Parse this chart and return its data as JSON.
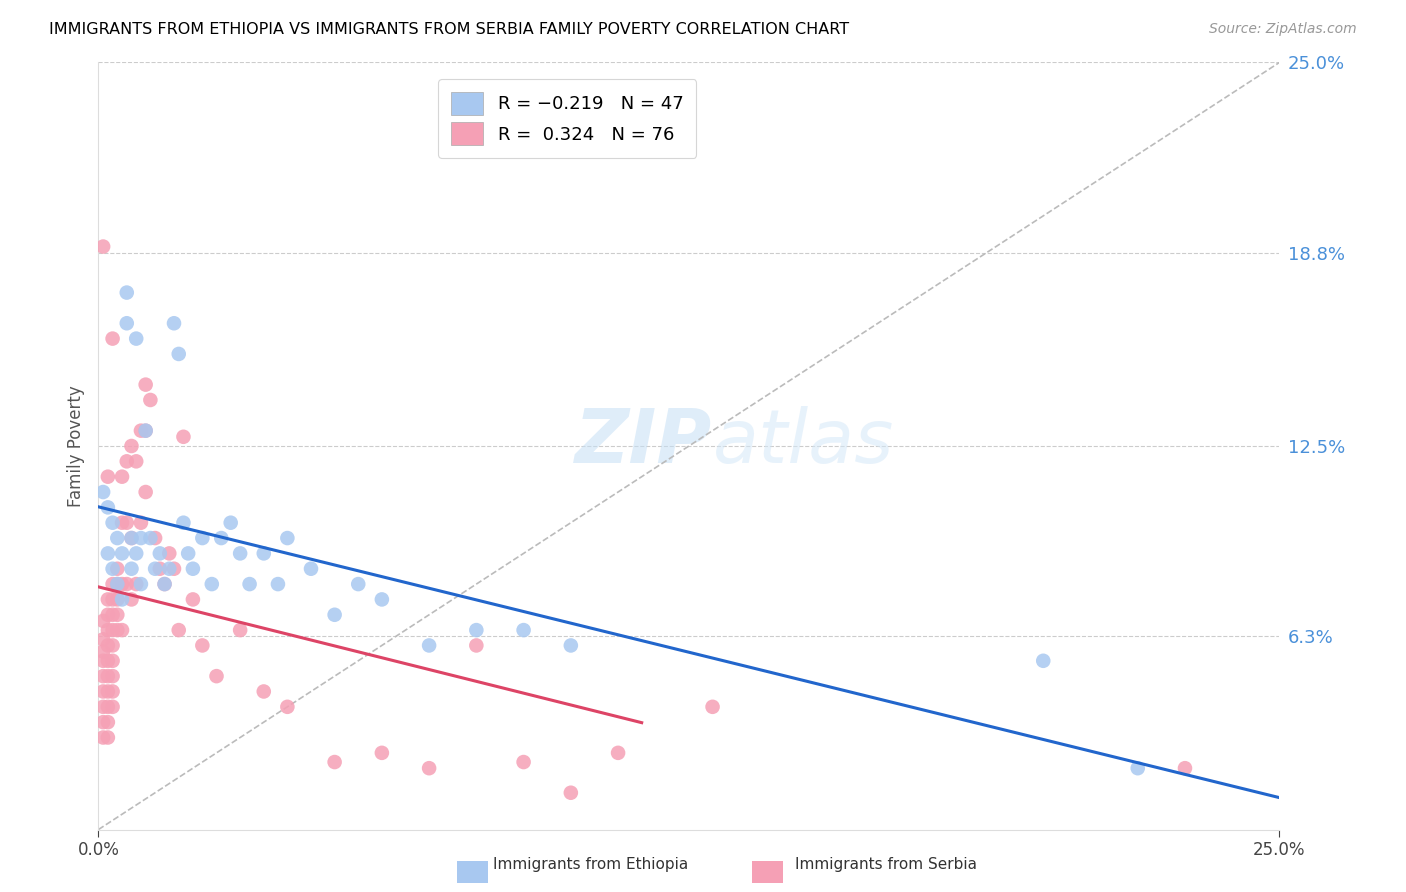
{
  "title": "IMMIGRANTS FROM ETHIOPIA VS IMMIGRANTS FROM SERBIA FAMILY POVERTY CORRELATION CHART",
  "source": "Source: ZipAtlas.com",
  "ylabel": "Family Poverty",
  "y_tick_labels_right": [
    "25.0%",
    "18.8%",
    "12.5%",
    "6.3%"
  ],
  "y_tick_values_right": [
    0.25,
    0.188,
    0.125,
    0.063
  ],
  "xlim": [
    0.0,
    0.25
  ],
  "ylim": [
    0.0,
    0.25
  ],
  "legend_ethiopia": "R = −0.219   N = 47",
  "legend_serbia": "R =  0.324   N = 76",
  "color_ethiopia": "#A8C8F0",
  "color_serbia": "#F5A0B5",
  "line_color_ethiopia": "#2266CC",
  "line_color_serbia": "#DD4466",
  "diagonal_color": "#BBBBBB",
  "ethiopia_x": [
    0.001,
    0.002,
    0.002,
    0.003,
    0.003,
    0.004,
    0.004,
    0.005,
    0.005,
    0.006,
    0.006,
    0.007,
    0.007,
    0.008,
    0.008,
    0.009,
    0.009,
    0.01,
    0.011,
    0.012,
    0.013,
    0.014,
    0.015,
    0.016,
    0.017,
    0.018,
    0.019,
    0.02,
    0.022,
    0.024,
    0.026,
    0.028,
    0.03,
    0.032,
    0.035,
    0.038,
    0.04,
    0.045,
    0.05,
    0.055,
    0.06,
    0.07,
    0.08,
    0.09,
    0.1,
    0.2,
    0.22
  ],
  "ethiopia_y": [
    0.11,
    0.105,
    0.09,
    0.1,
    0.085,
    0.095,
    0.08,
    0.09,
    0.075,
    0.175,
    0.165,
    0.095,
    0.085,
    0.16,
    0.09,
    0.095,
    0.08,
    0.13,
    0.095,
    0.085,
    0.09,
    0.08,
    0.085,
    0.165,
    0.155,
    0.1,
    0.09,
    0.085,
    0.095,
    0.08,
    0.095,
    0.1,
    0.09,
    0.08,
    0.09,
    0.08,
    0.095,
    0.085,
    0.07,
    0.08,
    0.075,
    0.06,
    0.065,
    0.065,
    0.06,
    0.055,
    0.02
  ],
  "serbia_x": [
    0.001,
    0.001,
    0.001,
    0.001,
    0.001,
    0.001,
    0.001,
    0.001,
    0.001,
    0.001,
    0.002,
    0.002,
    0.002,
    0.002,
    0.002,
    0.002,
    0.002,
    0.002,
    0.002,
    0.002,
    0.002,
    0.003,
    0.003,
    0.003,
    0.003,
    0.003,
    0.003,
    0.003,
    0.003,
    0.003,
    0.003,
    0.004,
    0.004,
    0.004,
    0.004,
    0.004,
    0.005,
    0.005,
    0.005,
    0.005,
    0.006,
    0.006,
    0.006,
    0.007,
    0.007,
    0.007,
    0.008,
    0.008,
    0.009,
    0.009,
    0.01,
    0.01,
    0.01,
    0.011,
    0.012,
    0.013,
    0.014,
    0.015,
    0.016,
    0.017,
    0.018,
    0.02,
    0.022,
    0.025,
    0.03,
    0.035,
    0.04,
    0.05,
    0.06,
    0.07,
    0.08,
    0.09,
    0.1,
    0.11,
    0.13,
    0.23
  ],
  "serbia_y": [
    0.068,
    0.062,
    0.058,
    0.055,
    0.05,
    0.045,
    0.04,
    0.035,
    0.03,
    0.19,
    0.075,
    0.07,
    0.065,
    0.06,
    0.055,
    0.05,
    0.045,
    0.04,
    0.035,
    0.03,
    0.115,
    0.08,
    0.075,
    0.07,
    0.065,
    0.06,
    0.055,
    0.05,
    0.045,
    0.04,
    0.16,
    0.085,
    0.08,
    0.075,
    0.07,
    0.065,
    0.115,
    0.1,
    0.08,
    0.065,
    0.12,
    0.1,
    0.08,
    0.125,
    0.095,
    0.075,
    0.12,
    0.08,
    0.13,
    0.1,
    0.145,
    0.13,
    0.11,
    0.14,
    0.095,
    0.085,
    0.08,
    0.09,
    0.085,
    0.065,
    0.128,
    0.075,
    0.06,
    0.05,
    0.065,
    0.045,
    0.04,
    0.022,
    0.025,
    0.02,
    0.06,
    0.022,
    0.012,
    0.025,
    0.04,
    0.02
  ],
  "ethiopia_trend_x": [
    0.0,
    0.25
  ],
  "serbia_trend_x_end": 0.115
}
